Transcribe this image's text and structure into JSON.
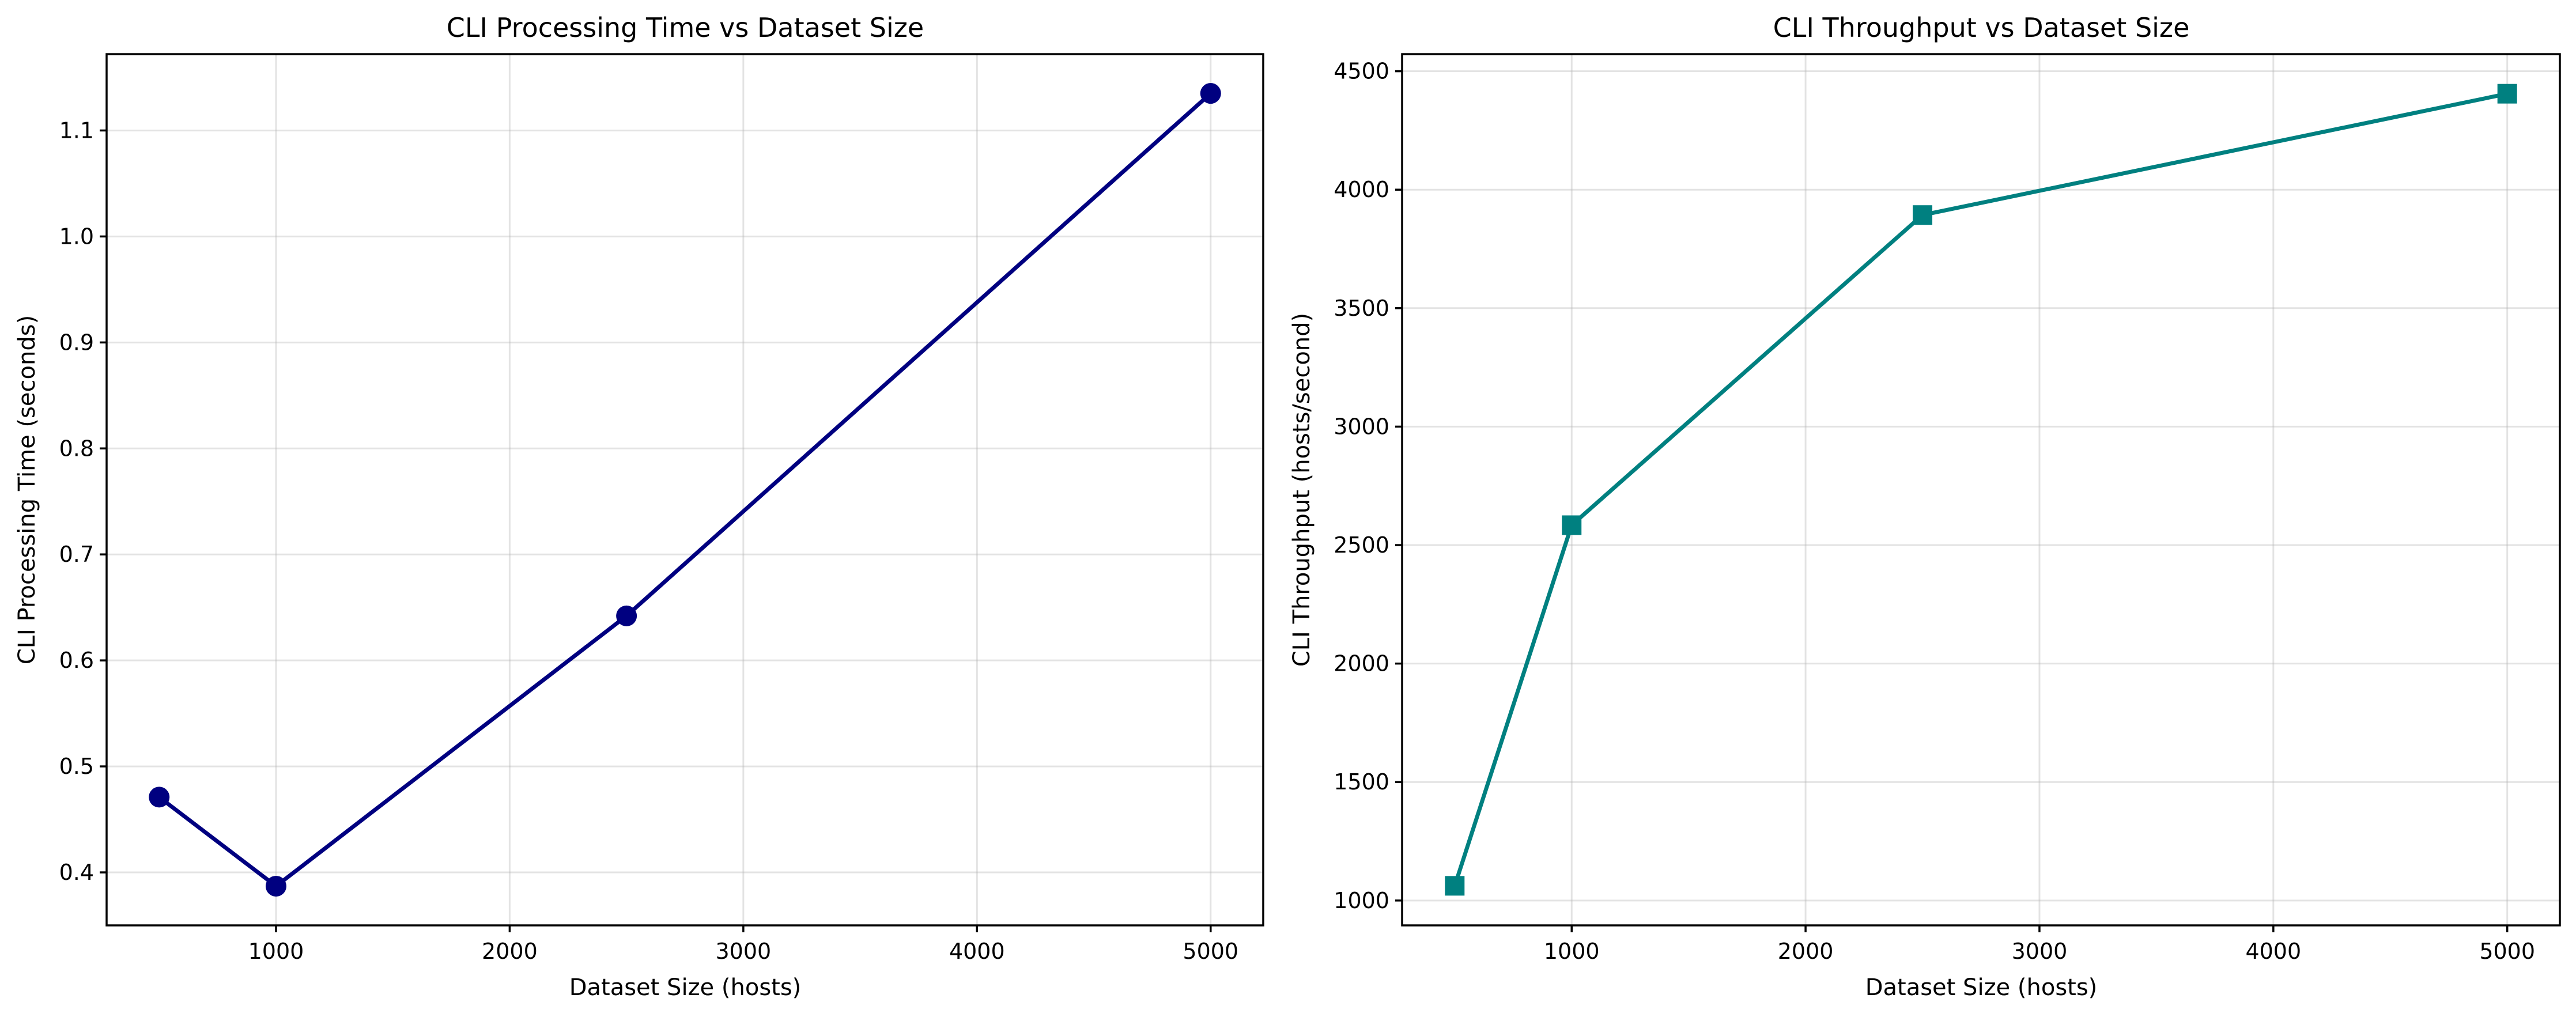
{
  "chart_data": [
    {
      "type": "line",
      "title": "CLI Processing Time vs Dataset Size",
      "xlabel": "Dataset Size (hosts)",
      "ylabel": "CLI Processing Time (seconds)",
      "x": [
        500,
        1000,
        2500,
        5000
      ],
      "series": [
        {
          "values": [
            0.471,
            0.387,
            0.642,
            1.135
          ],
          "color": "#000080",
          "marker": "circle"
        }
      ],
      "xlim": [
        275,
        5225
      ],
      "ylim": [
        0.35,
        1.172
      ],
      "xticks": [
        1000,
        2000,
        3000,
        4000,
        5000
      ],
      "xtick_labels": [
        "1000",
        "2000",
        "3000",
        "4000",
        "5000"
      ],
      "yticks": [
        0.4,
        0.5,
        0.6,
        0.7,
        0.8,
        0.9,
        1.0,
        1.1
      ],
      "ytick_labels": [
        "0.4",
        "0.5",
        "0.6",
        "0.7",
        "0.8",
        "0.9",
        "1.0",
        "1.1"
      ],
      "grid": true
    },
    {
      "type": "line",
      "title": "CLI Throughput vs Dataset Size",
      "xlabel": "Dataset Size (hosts)",
      "ylabel": "CLI Throughput (hosts/second)",
      "x": [
        500,
        1000,
        2500,
        5000
      ],
      "series": [
        {
          "values": [
            1062,
            2584,
            3893,
            4405
          ],
          "color": "#008080",
          "marker": "square"
        }
      ],
      "xlim": [
        275,
        5225
      ],
      "ylim": [
        895,
        4572
      ],
      "xticks": [
        1000,
        2000,
        3000,
        4000,
        5000
      ],
      "xtick_labels": [
        "1000",
        "2000",
        "3000",
        "4000",
        "5000"
      ],
      "yticks": [
        1000,
        1500,
        2000,
        2500,
        3000,
        3500,
        4000,
        4500
      ],
      "ytick_labels": [
        "1000",
        "1500",
        "2000",
        "2500",
        "3000",
        "3500",
        "4000",
        "4500"
      ],
      "grid": true
    }
  ]
}
